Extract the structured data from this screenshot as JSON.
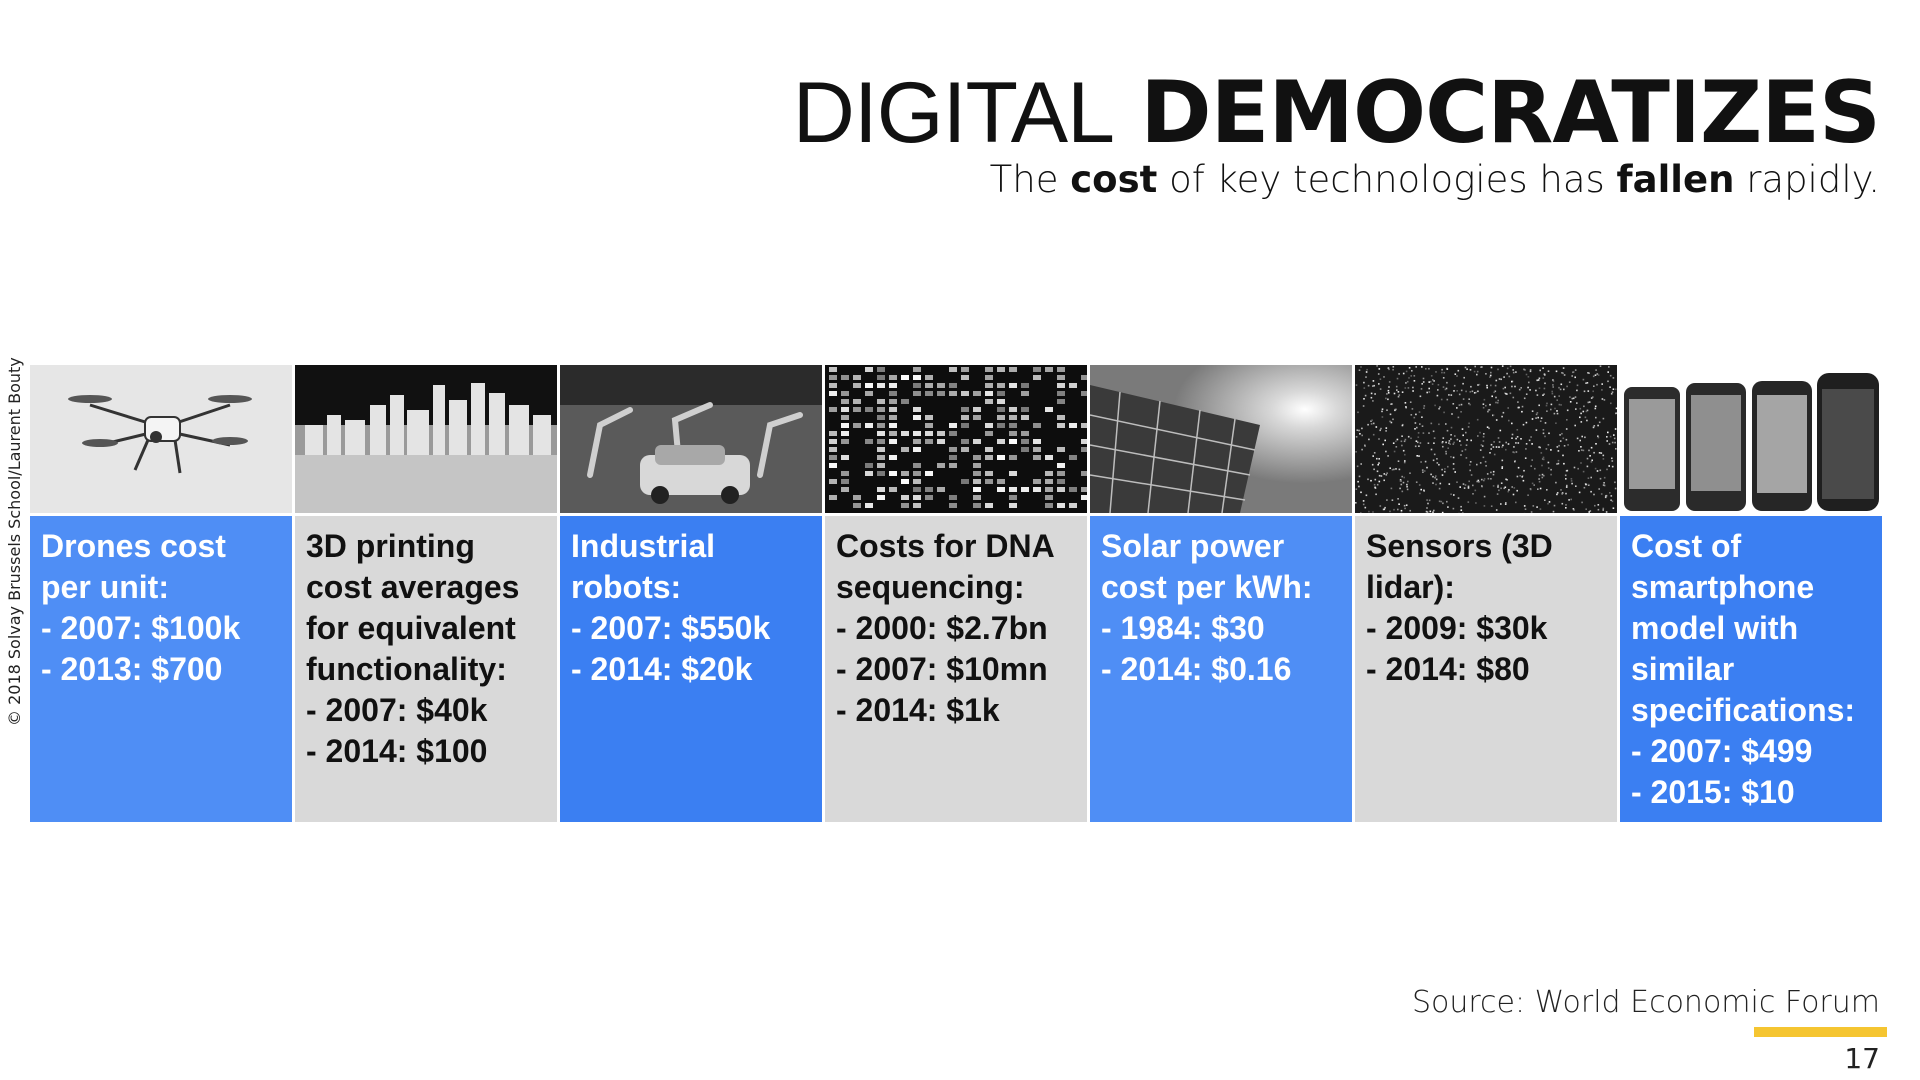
{
  "title": {
    "light": "DIGITAL",
    "bold": "DEMOCRATIZES"
  },
  "subtitle": {
    "part1": "The",
    "bold1": "cost",
    "part2": "of key technologies has",
    "bold2": "fallen",
    "part3": "rapidly."
  },
  "copyright": "© 2018 Solvay Brussels School/Laurent Bouty",
  "cards": [
    {
      "text": "Drones cost\nper unit:\n- 2007: $100k\n- 2013: $700",
      "image": "drone-image"
    },
    {
      "text": "3D printing\ncost averages\nfor equivalent\nfunctionality:\n- 2007: $40k\n- 2014: $100",
      "image": "3d-printed-city-image"
    },
    {
      "text": "Industrial\nrobots:\n- 2007: $550k\n- 2014: $20k",
      "image": "industrial-robots-image"
    },
    {
      "text": "Costs for DNA\nsequencing:\n- 2000: $2.7bn\n- 2007: $10mn\n- 2014: $1k",
      "image": "dna-sequencing-image"
    },
    {
      "text": "Solar power\ncost per kWh:\n- 1984: $30\n- 2014: $0.16",
      "image": "solar-panel-image"
    },
    {
      "text": "Sensors (3D\nlidar):\n- 2009: $30k\n- 2014: $80",
      "image": "lidar-scan-image"
    },
    {
      "text": "Cost of\nsmartphone\nmodel with\nsimilar\nspecifications:\n- 2007: $499\n- 2015: $10",
      "image": "smartphones-image"
    }
  ],
  "colors": {
    "blue": "#4f8ef5",
    "blue_dark": "#3b7ff2",
    "gray": "#d9d9d9",
    "accent": "#f5c531"
  },
  "source": "Source: World Economic Forum",
  "page_number": "17"
}
